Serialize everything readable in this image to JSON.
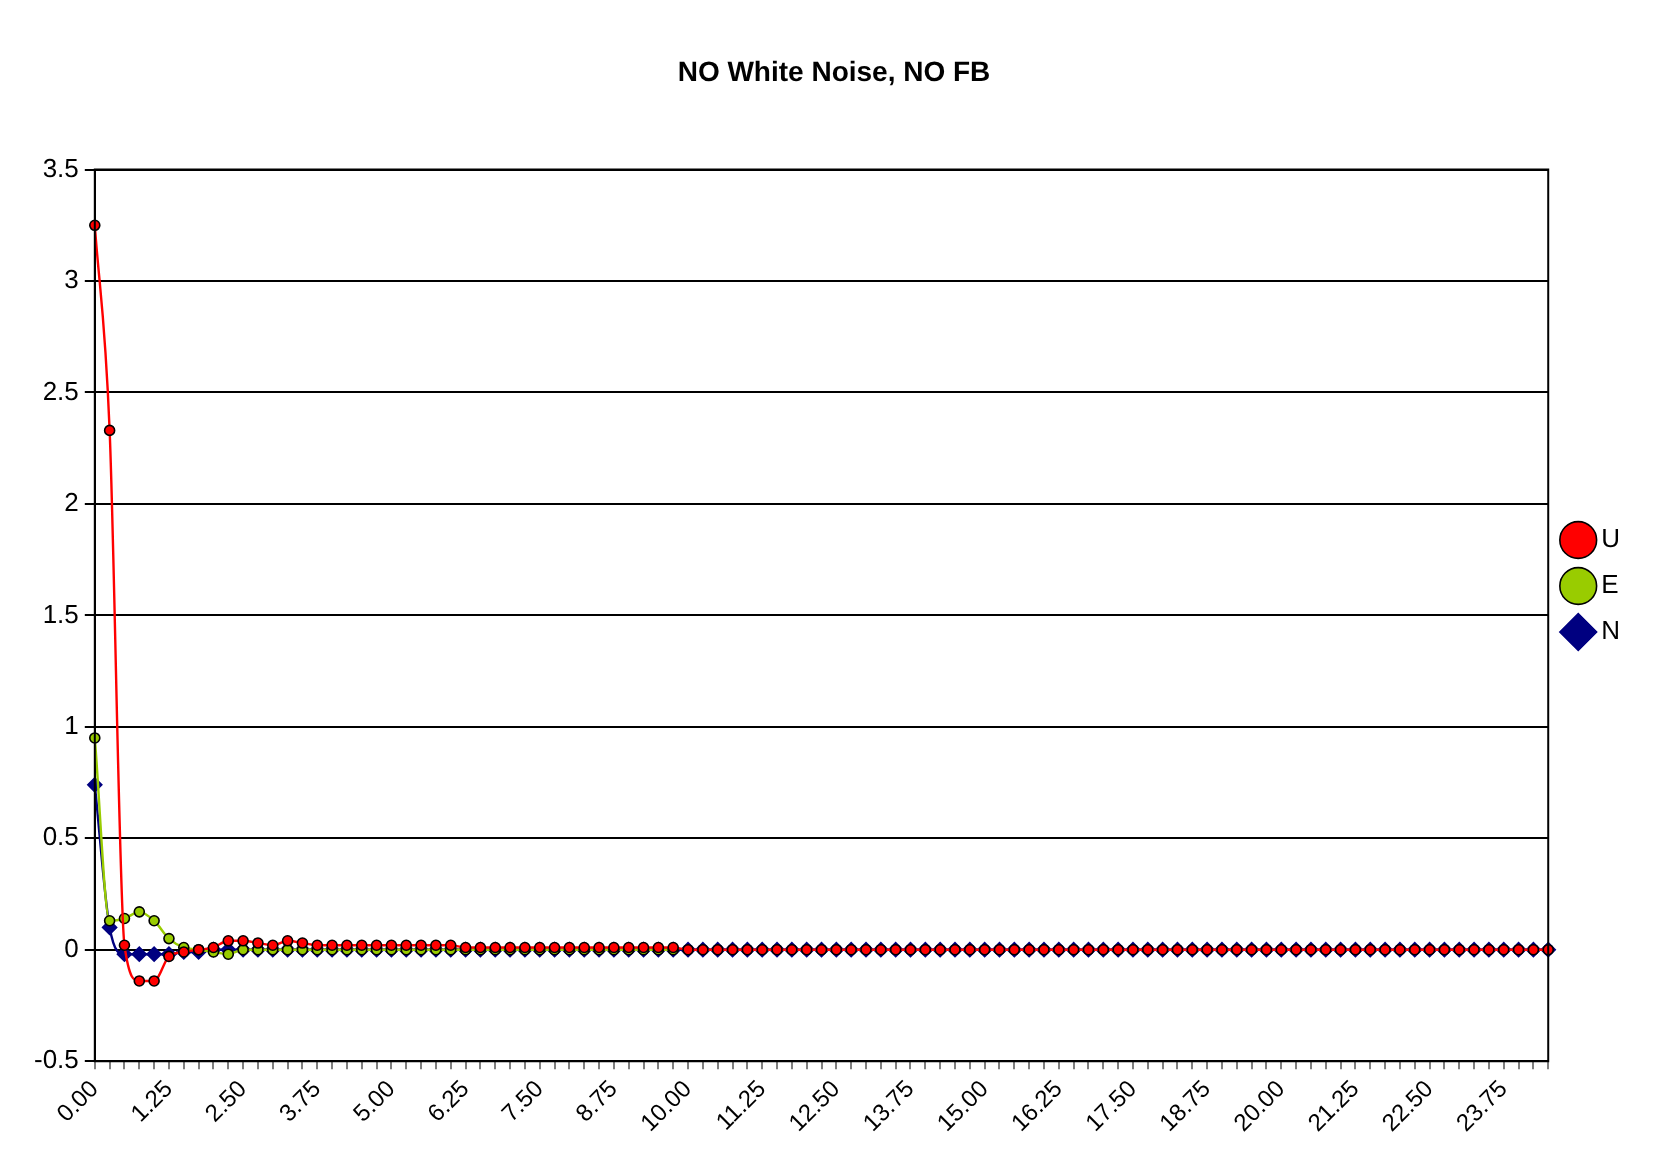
{
  "chart_data": {
    "type": "line",
    "title": "NO White Noise, NO FB",
    "categories": [
      "0.00",
      null,
      null,
      null,
      null,
      "1.25",
      null,
      null,
      null,
      null,
      "2.50",
      null,
      null,
      null,
      null,
      "3.75",
      null,
      null,
      null,
      null,
      "5.00",
      null,
      null,
      null,
      null,
      "6.25",
      null,
      null,
      null,
      null,
      "7.50",
      null,
      null,
      null,
      null,
      "8.75",
      null,
      null,
      null,
      null,
      "10.00",
      null,
      null,
      null,
      null,
      "11.25",
      null,
      null,
      null,
      null,
      "12.50",
      null,
      null,
      null,
      null,
      "13.75",
      null,
      null,
      null,
      null,
      "15.00",
      null,
      null,
      null,
      null,
      "16.25",
      null,
      null,
      null,
      null,
      "17.50",
      null,
      null,
      null,
      null,
      "18.75",
      null,
      null,
      null,
      null,
      "20.00",
      null,
      null,
      null,
      null,
      "21.25",
      null,
      null,
      null,
      null,
      "22.50",
      null,
      null,
      null,
      null,
      "23.75",
      null,
      null,
      null
    ],
    "series": [
      {
        "name": "N",
        "color": "#000080",
        "marker": "diamond",
        "values": [
          0.74,
          0.1,
          -0.02,
          -0.02,
          -0.02,
          -0.02,
          -0.01,
          -0.01,
          0,
          0,
          0,
          0,
          0,
          0,
          0,
          0,
          0,
          0,
          0,
          0,
          0,
          0,
          0,
          0,
          0,
          0,
          0,
          0,
          0,
          0,
          0,
          0,
          0,
          0,
          0,
          0,
          0,
          0,
          0,
          0,
          0,
          0,
          0,
          0,
          0,
          0,
          0,
          0,
          0,
          0,
          0,
          0,
          0,
          0,
          0,
          0,
          0,
          0,
          0,
          0,
          0,
          0,
          0,
          0,
          0,
          0,
          0,
          0,
          0,
          0,
          0,
          0,
          0,
          0,
          0,
          0,
          0,
          0,
          0,
          0,
          0,
          0,
          0,
          0,
          0,
          0,
          0,
          0,
          0,
          0,
          0,
          0,
          0,
          0,
          0,
          0,
          0,
          0,
          0
        ]
      },
      {
        "name": "E",
        "color": "#99cc00",
        "marker": "circle",
        "values": [
          0.95,
          0.13,
          0.14,
          0.17,
          0.13,
          0.05,
          0.01,
          0,
          -0.01,
          -0.02,
          0,
          0,
          0,
          0,
          0,
          0,
          0,
          0,
          0,
          0,
          0,
          0,
          0,
          0,
          0,
          0,
          0,
          0,
          0,
          0,
          0,
          0,
          0,
          0,
          0,
          0,
          0,
          0,
          0,
          0,
          null,
          null,
          null,
          null,
          null,
          null,
          null,
          null,
          null,
          null,
          null,
          null,
          null,
          null,
          null,
          null,
          null,
          null,
          null,
          null,
          null,
          null,
          null,
          null,
          null,
          null,
          null,
          null,
          null,
          null,
          null,
          null,
          null,
          null,
          null,
          null,
          null,
          null,
          null,
          null,
          null,
          null,
          null,
          null,
          null,
          null,
          null,
          null,
          null,
          null,
          null,
          null,
          null,
          null,
          null,
          null,
          null,
          null,
          null
        ]
      },
      {
        "name": "U",
        "color": "#ff0000",
        "marker": "circle",
        "values": [
          3.25,
          2.33,
          0.02,
          -0.14,
          -0.14,
          -0.03,
          -0.01,
          0,
          0.01,
          0.04,
          0.04,
          0.03,
          0.02,
          0.04,
          0.03,
          0.02,
          0.02,
          0.02,
          0.02,
          0.02,
          0.02,
          0.02,
          0.02,
          0.02,
          0.02,
          0.01,
          0.01,
          0.01,
          0.01,
          0.01,
          0.01,
          0.01,
          0.01,
          0.01,
          0.01,
          0.01,
          0.01,
          0.01,
          0.01,
          0.01,
          0,
          0,
          0,
          0,
          0,
          0,
          0,
          0,
          0,
          0,
          0,
          0,
          0,
          0,
          0,
          0,
          0,
          0,
          0,
          0,
          0,
          0,
          0,
          0,
          0,
          0,
          0,
          0,
          0,
          0,
          0,
          0,
          0,
          0,
          0,
          0,
          0,
          0,
          0,
          0,
          0,
          0,
          0,
          0,
          0,
          0,
          0,
          0,
          0,
          0,
          0,
          0,
          0,
          0,
          0,
          0,
          0,
          0,
          0
        ]
      }
    ],
    "ylim": [
      -0.5,
      3.5
    ],
    "yticks": [
      -0.5,
      0,
      0.5,
      1,
      1.5,
      2,
      2.5,
      3,
      3.5
    ],
    "grid": "y",
    "legend": "right"
  }
}
